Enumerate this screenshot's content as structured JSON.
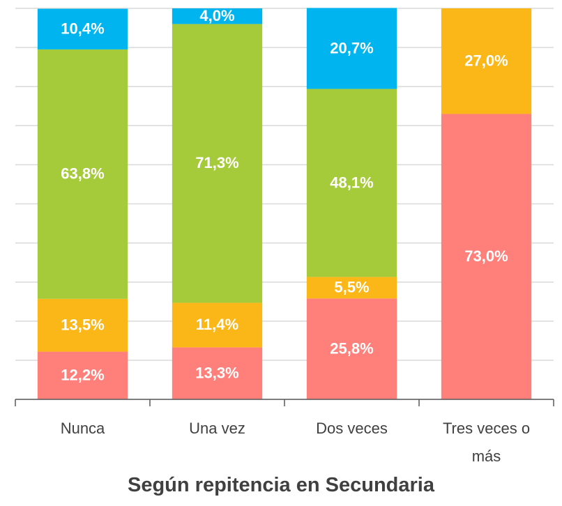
{
  "chart_data": {
    "type": "stacked_bar",
    "title": "Según repitencia en Secundaria",
    "categories": [
      "Nunca",
      "Una vez",
      "Dos veces",
      "Tres veces o más"
    ],
    "series": [
      {
        "color": "#ff7f7a",
        "values": [
          12.2,
          13.3,
          25.8,
          73.0
        ],
        "value_labels": [
          "12,2%",
          "13,3%",
          "25,8%",
          "73,0%"
        ]
      },
      {
        "color": "#fbb617",
        "values": [
          13.5,
          11.4,
          5.5,
          27.0
        ],
        "value_labels": [
          "13,5%",
          "11,4%",
          "5,5%",
          "27,0%"
        ]
      },
      {
        "color": "#a6cb3a",
        "values": [
          63.8,
          71.3,
          48.1,
          null
        ],
        "value_labels": [
          "63,8%",
          "71,3%",
          "48,1%",
          null
        ]
      },
      {
        "color": "#00b5ef",
        "values": [
          10.4,
          4.0,
          20.7,
          null
        ],
        "value_labels": [
          "10,4%",
          "4,0%",
          "20,7%",
          null
        ]
      }
    ],
    "ylim": [
      0,
      100
    ],
    "yticks": [
      0,
      10,
      20,
      30,
      40,
      50,
      60,
      70,
      80,
      90,
      100
    ],
    "grid": true
  }
}
